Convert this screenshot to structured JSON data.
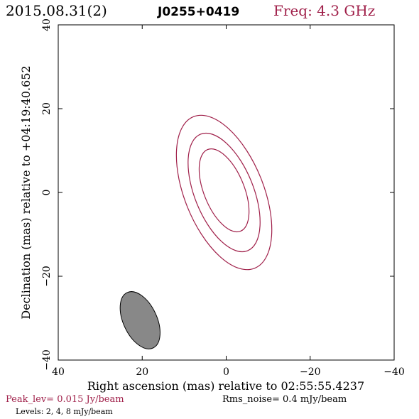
{
  "header": {
    "date": "2015.08.31(2)",
    "source": "J0255+0419",
    "freq": "Freq: 4.3 GHz"
  },
  "footer": {
    "peak": "Peak_lev=  0.015 Jy/beam",
    "rms": "Rms_noise=   0.4 mJy/beam",
    "levels": "Levels:   2,    4,    8 mJy/beam"
  },
  "colors": {
    "accent": "#a0204a",
    "beam_fill": "#888888",
    "axis": "#000000"
  },
  "chart_data": {
    "type": "contour",
    "xlabel": "Right ascension (mas) relative to 02:55:55.4237",
    "ylabel": "Declination (mas) relative to +04:19:40.652",
    "xlim": [
      40,
      -40
    ],
    "ylim": [
      -40,
      40
    ],
    "x_ticks": [
      40,
      20,
      0,
      -20,
      -40
    ],
    "y_ticks": [
      40,
      20,
      0,
      -20,
      -40
    ],
    "x_tick_labels": [
      "40",
      "20",
      "0",
      "−20",
      "−40"
    ],
    "y_tick_labels": [
      "40",
      "20",
      "0",
      "−20",
      "−40"
    ],
    "levels_mJy": [
      2,
      4,
      8
    ],
    "contours": [
      {
        "level": 2,
        "center": [
          0.5,
          0
        ],
        "a": 19.5,
        "b": 9.4,
        "pa_deg": 22
      },
      {
        "level": 4,
        "center": [
          0.5,
          0
        ],
        "a": 15.0,
        "b": 7.0,
        "pa_deg": 22
      },
      {
        "level": 8,
        "center": [
          0.5,
          0.5
        ],
        "a": 10.5,
        "b": 4.8,
        "pa_deg": 22
      }
    ],
    "beam": {
      "center": [
        20.5,
        -30.5
      ],
      "a": 7.3,
      "b": 4.0,
      "pa_deg": 25
    }
  }
}
